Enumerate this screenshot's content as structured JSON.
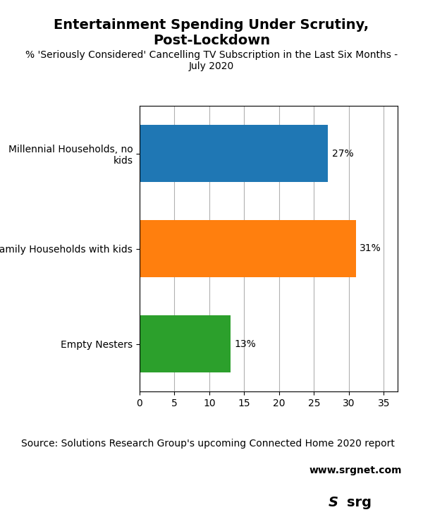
{
  "chart_data": {
    "type": "bar",
    "orientation": "horizontal",
    "title": "Entertainment Spending Under Scrutiny, Post-Lockdown",
    "subtitle": "% 'Seriously Considered' Cancelling TV Subscription in the Last Six Months -\nJuly 2020",
    "categories": [
      "Millennial Households, no\nkids",
      "Family Households with kids",
      "Empty Nesters"
    ],
    "values": [
      27,
      31,
      13
    ],
    "value_labels": [
      "27%",
      "31%",
      "13%"
    ],
    "data_labels": true,
    "xlim": [
      0,
      37
    ],
    "xticks": [
      0,
      5,
      10,
      15,
      20,
      25,
      30,
      35
    ],
    "grid": true,
    "source": "Source: Solutions Research Group's upcoming Connected Home 2020 report",
    "annotations": [
      "www.srgnet.com",
      "S",
      "srg"
    ]
  }
}
